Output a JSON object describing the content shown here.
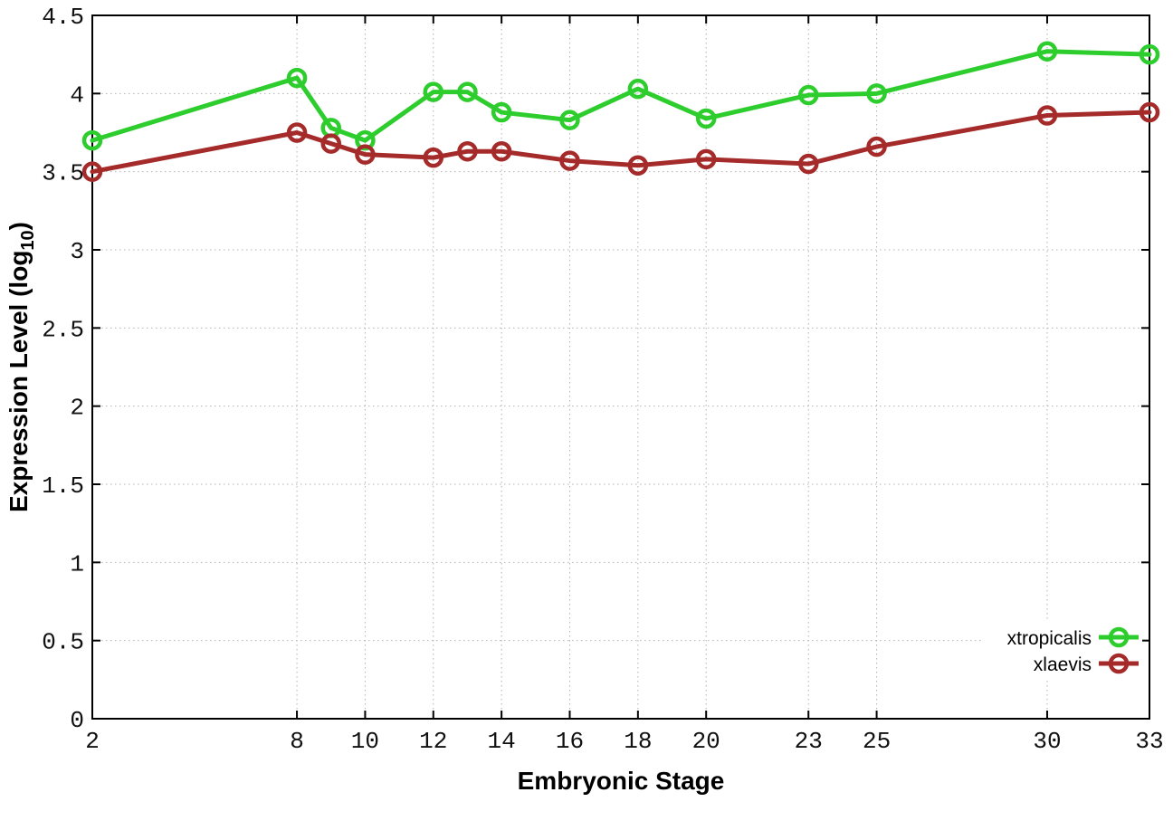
{
  "figure": {
    "background": "#ffffff",
    "border_color": "#000000",
    "grid_color": "#b3b3b3"
  },
  "chart_data": {
    "type": "line",
    "title": "",
    "xlabel": "Embryonic Stage",
    "ylabel_main": "Expression Level (log",
    "ylabel_sub": "10",
    "ylabel_close": ")",
    "x": [
      2,
      8,
      9,
      10,
      12,
      13,
      14,
      16,
      18,
      20,
      23,
      25,
      30,
      33
    ],
    "series": [
      {
        "name": "xtropicalis",
        "color": "#2dcd2d",
        "values": [
          3.7,
          4.1,
          3.78,
          3.7,
          4.01,
          4.01,
          3.88,
          3.83,
          4.03,
          3.84,
          3.99,
          4.0,
          4.27,
          4.25
        ]
      },
      {
        "name": "xlaevis",
        "color": "#a52a2a",
        "values": [
          3.5,
          3.75,
          3.68,
          3.61,
          3.59,
          3.63,
          3.63,
          3.57,
          3.54,
          3.58,
          3.55,
          3.66,
          3.86,
          3.88
        ]
      }
    ],
    "xlim": [
      2,
      33
    ],
    "ylim": [
      0,
      4.5
    ],
    "xticks": [
      2,
      8,
      10,
      12,
      14,
      16,
      18,
      20,
      23,
      25,
      30,
      33
    ],
    "yticks": [
      0,
      0.5,
      1,
      1.5,
      2,
      2.5,
      3,
      3.5,
      4,
      4.5
    ],
    "grid": true,
    "marker": "open-circle",
    "legend_position": "bottom-right",
    "legend_entries": [
      "xtropicalis",
      "xlaevis"
    ]
  }
}
